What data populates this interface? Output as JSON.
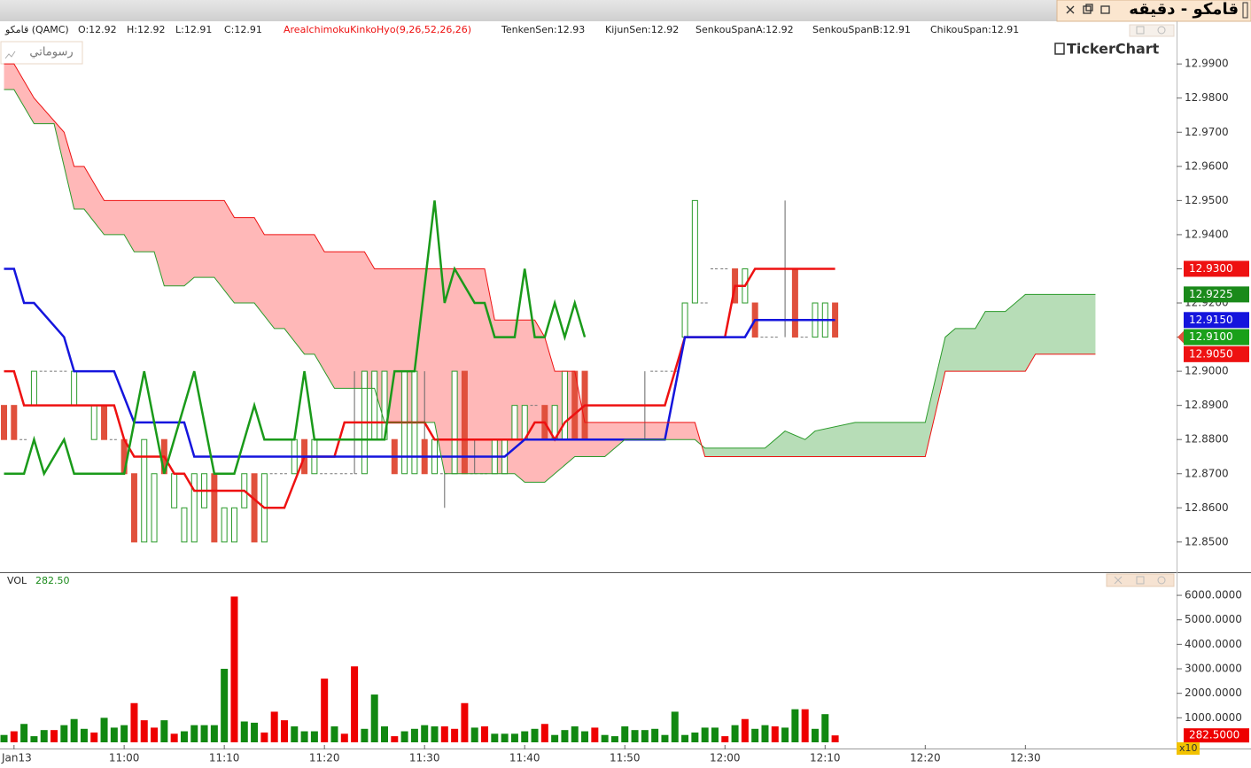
{
  "window_title": "قامكو - دقيقه",
  "drawings_button": "رسوماتي",
  "logo": "TickerChart",
  "chart_data": {
    "type": "candlestick",
    "symbol": "قامكو (QAMC)",
    "ohlc_labels": [
      "O:12.92",
      "H:12.92",
      "L:12.91",
      "C:12.91"
    ],
    "indicator": "AreaIchimokuKinkoHyo(9,26,52,26,26)",
    "up_color": "#2a9a2a",
    "down_color": "#e0503c",
    "x": [
      648,
      649,
      650,
      651,
      652,
      653,
      654,
      655,
      656,
      657,
      658,
      659,
      660,
      661,
      662,
      663,
      664,
      665,
      666,
      667,
      668,
      669,
      670,
      671,
      672,
      673,
      674,
      675,
      676,
      677,
      678,
      679,
      680,
      681,
      682,
      683,
      684,
      685,
      686,
      687,
      688,
      689,
      690,
      691,
      692,
      693,
      694,
      695,
      696,
      697,
      698,
      699,
      700,
      701,
      702,
      703,
      704,
      705,
      706,
      707,
      708,
      709,
      710,
      711,
      712,
      713,
      714,
      715,
      716,
      717,
      718,
      719,
      720,
      721,
      722,
      723,
      724,
      725,
      726,
      727,
      728,
      729,
      730,
      731
    ],
    "ohlc": [
      [
        12.89,
        12.89,
        12.88,
        12.88
      ],
      [
        12.89,
        12.89,
        12.88,
        12.88
      ],
      [
        12.88,
        12.88,
        12.88,
        12.88
      ],
      [
        12.89,
        12.9,
        12.89,
        12.9
      ],
      [
        12.9,
        12.9,
        12.9,
        12.9
      ],
      [
        12.9,
        12.9,
        12.9,
        12.9
      ],
      [
        12.9,
        12.9,
        12.9,
        12.9
      ],
      [
        12.89,
        12.9,
        12.89,
        12.9
      ],
      [
        12.89,
        12.89,
        12.89,
        12.89
      ],
      [
        12.88,
        12.89,
        12.88,
        12.89
      ],
      [
        12.89,
        12.89,
        12.88,
        12.88
      ],
      [
        12.88,
        12.88,
        12.88,
        12.88
      ],
      [
        12.88,
        12.88,
        12.87,
        12.87
      ],
      [
        12.87,
        12.87,
        12.85,
        12.85
      ],
      [
        12.85,
        12.88,
        12.85,
        12.88
      ],
      [
        12.85,
        12.87,
        12.85,
        12.87
      ],
      [
        12.88,
        12.88,
        12.87,
        12.87
      ],
      [
        12.86,
        12.87,
        12.86,
        12.87
      ],
      [
        12.85,
        12.86,
        12.85,
        12.86
      ],
      [
        12.85,
        12.87,
        12.85,
        12.87
      ],
      [
        12.86,
        12.87,
        12.86,
        12.87
      ],
      [
        12.87,
        12.87,
        12.85,
        12.85
      ],
      [
        12.85,
        12.86,
        12.85,
        12.86
      ],
      [
        12.85,
        12.86,
        12.85,
        12.86
      ],
      [
        12.86,
        12.87,
        12.86,
        12.87
      ],
      [
        12.87,
        12.87,
        12.85,
        12.85
      ],
      [
        12.85,
        12.87,
        12.85,
        12.87
      ],
      [
        12.87,
        12.87,
        12.87,
        12.87
      ],
      [
        12.87,
        12.87,
        12.87,
        12.87
      ],
      [
        12.87,
        12.88,
        12.87,
        12.88
      ],
      [
        12.88,
        12.88,
        12.87,
        12.87
      ],
      [
        12.87,
        12.88,
        12.87,
        12.88
      ],
      [
        12.87,
        12.87,
        12.87,
        12.87
      ],
      [
        12.87,
        12.87,
        12.87,
        12.87
      ],
      [
        12.87,
        12.87,
        12.87,
        12.87
      ],
      [
        12.87,
        12.9,
        12.87,
        12.87
      ],
      [
        12.87,
        12.9,
        12.87,
        12.9
      ],
      [
        12.88,
        12.9,
        12.88,
        12.9
      ],
      [
        12.88,
        12.9,
        12.88,
        12.9
      ],
      [
        12.88,
        12.88,
        12.87,
        12.87
      ],
      [
        12.87,
        12.9,
        12.87,
        12.9
      ],
      [
        12.87,
        12.9,
        12.87,
        12.9
      ],
      [
        12.88,
        12.9,
        12.87,
        12.87
      ],
      [
        12.87,
        12.88,
        12.87,
        12.88
      ],
      [
        12.87,
        12.87,
        12.86,
        12.87
      ],
      [
        12.87,
        12.9,
        12.87,
        12.9
      ],
      [
        12.9,
        12.9,
        12.87,
        12.87
      ],
      [
        12.87,
        12.88,
        12.87,
        12.87
      ],
      [
        12.87,
        12.87,
        12.87,
        12.87
      ],
      [
        12.87,
        12.88,
        12.87,
        12.88
      ],
      [
        12.87,
        12.88,
        12.87,
        12.88
      ],
      [
        12.88,
        12.89,
        12.88,
        12.89
      ],
      [
        12.88,
        12.89,
        12.88,
        12.89
      ],
      [
        12.89,
        12.89,
        12.89,
        12.89
      ],
      [
        12.89,
        12.89,
        12.88,
        12.88
      ],
      [
        12.88,
        12.89,
        12.88,
        12.89
      ],
      [
        12.88,
        12.9,
        12.88,
        12.9
      ],
      [
        12.9,
        12.9,
        12.88,
        12.88
      ],
      [
        12.9,
        12.9,
        12.88,
        12.88
      ],
      [
        12.89,
        12.89,
        12.89,
        12.89
      ],
      [
        12.89,
        12.89,
        12.89,
        12.89
      ],
      [
        12.89,
        12.89,
        12.89,
        12.89
      ],
      [
        12.89,
        12.89,
        12.89,
        12.89
      ],
      [
        12.89,
        12.89,
        12.89,
        12.89
      ],
      [
        12.89,
        12.9,
        12.88,
        12.89
      ],
      [
        12.9,
        12.9,
        12.9,
        12.9
      ],
      [
        12.9,
        12.9,
        12.9,
        12.9
      ],
      [
        12.9,
        12.9,
        12.9,
        12.9
      ],
      [
        12.91,
        12.92,
        12.91,
        12.92
      ],
      [
        12.92,
        12.95,
        12.92,
        12.95
      ],
      [
        12.92,
        12.92,
        12.92,
        12.92
      ],
      [
        12.93,
        12.93,
        12.93,
        12.93
      ],
      [
        12.93,
        12.93,
        12.93,
        12.93
      ],
      [
        12.93,
        12.93,
        12.92,
        12.92
      ],
      [
        12.92,
        12.93,
        12.92,
        12.93
      ],
      [
        12.92,
        12.92,
        12.91,
        12.91
      ],
      [
        12.91,
        12.91,
        12.91,
        12.91
      ],
      [
        12.91,
        12.91,
        12.91,
        12.91
      ],
      [
        12.93,
        12.95,
        12.91,
        12.93
      ],
      [
        12.93,
        12.93,
        12.91,
        12.91
      ],
      [
        12.91,
        12.91,
        12.91,
        12.91
      ],
      [
        12.91,
        12.92,
        12.91,
        12.92
      ],
      [
        12.91,
        12.92,
        12.91,
        12.92
      ],
      [
        12.92,
        12.92,
        12.91,
        12.91
      ]
    ],
    "xlim": [
      647.6,
      765.1
    ],
    "xticks": [
      {
        "value": 649,
        "label": "Jan13"
      },
      {
        "value": 660,
        "label": "11:00"
      },
      {
        "value": 670,
        "label": "11:10"
      },
      {
        "value": 680,
        "label": "11:20"
      },
      {
        "value": 690,
        "label": "11:30"
      },
      {
        "value": 700,
        "label": "11:40"
      },
      {
        "value": 710,
        "label": "11:50"
      },
      {
        "value": 720,
        "label": "12:00"
      },
      {
        "value": 730,
        "label": "12:10"
      },
      {
        "value": 740,
        "label": "12:20"
      },
      {
        "value": 750,
        "label": "12:30"
      }
    ],
    "ylim": [
      12.8414,
      13.0025
    ],
    "yticks": [
      {
        "value": 12.85,
        "label": "12.8500"
      },
      {
        "value": 12.86,
        "label": "12.8600"
      },
      {
        "value": 12.87,
        "label": "12.8700"
      },
      {
        "value": 12.88,
        "label": "12.8800"
      },
      {
        "value": 12.89,
        "label": "12.8900"
      },
      {
        "value": 12.9,
        "label": "12.9000"
      },
      {
        "value": 12.91,
        "label": "12.9100"
      },
      {
        "value": 12.92,
        "label": "12.9200"
      },
      {
        "value": 12.93,
        "label": "12.9300"
      },
      {
        "value": 12.94,
        "label": "12.9400"
      },
      {
        "value": 12.95,
        "label": "12.9500"
      },
      {
        "value": 12.96,
        "label": "12.9600"
      },
      {
        "value": 12.97,
        "label": "12.9700"
      },
      {
        "value": 12.98,
        "label": "12.9800"
      },
      {
        "value": 12.99,
        "label": "12.9900"
      }
    ],
    "series": [
      {
        "name": "TenkenSen:12.93",
        "color": "#ee1111",
        "width": 2.5,
        "x": [
          648,
          649,
          650,
          659,
          660,
          661,
          664,
          665,
          666,
          667,
          672,
          674,
          676,
          678,
          681,
          682,
          690,
          691,
          700,
          701,
          702,
          703,
          704,
          706,
          714,
          716,
          720,
          721,
          722,
          723,
          731
        ],
        "values": [
          12.9,
          12.9,
          12.89,
          12.89,
          12.88,
          12.875,
          12.875,
          12.87,
          12.87,
          12.865,
          12.865,
          12.86,
          12.86,
          12.875,
          12.875,
          12.885,
          12.885,
          12.88,
          12.88,
          12.885,
          12.885,
          12.88,
          12.885,
          12.89,
          12.89,
          12.91,
          12.91,
          12.925,
          12.925,
          12.93,
          12.93
        ]
      },
      {
        "name": "KijunSen:12.92",
        "color": "#1515dd",
        "width": 2.5,
        "x": [
          648,
          649,
          650,
          651,
          654,
          655,
          659,
          661,
          666,
          667,
          698,
          700,
          714,
          716,
          722,
          723,
          731
        ],
        "values": [
          12.93,
          12.93,
          12.92,
          12.92,
          12.91,
          12.9,
          12.9,
          12.885,
          12.885,
          12.875,
          12.875,
          12.88,
          12.88,
          12.91,
          12.91,
          12.915,
          12.915
        ]
      },
      {
        "name": "SenkouSpanA:12.92",
        "color": "#2a9a2a",
        "width": 1,
        "x": [
          648,
          649,
          651,
          653,
          655,
          656,
          658,
          660,
          661,
          663,
          664,
          666,
          667,
          669,
          671,
          673,
          675,
          676,
          678,
          679,
          681,
          685,
          686,
          691,
          692,
          699,
          700,
          702,
          703,
          705,
          708,
          710,
          717,
          718,
          724,
          726,
          728,
          729,
          733,
          740,
          742,
          743,
          745,
          746,
          748,
          750,
          757
        ],
        "values": [
          12.9825,
          12.9825,
          12.9725,
          12.9725,
          12.9475,
          12.9475,
          12.94,
          12.94,
          12.935,
          12.935,
          12.925,
          12.925,
          12.9275,
          12.9275,
          12.92,
          12.92,
          12.9125,
          12.9125,
          12.905,
          12.905,
          12.895,
          12.895,
          12.885,
          12.885,
          12.87,
          12.87,
          12.8675,
          12.8675,
          12.87,
          12.875,
          12.875,
          12.88,
          12.88,
          12.8775,
          12.8775,
          12.8825,
          12.88,
          12.8825,
          12.885,
          12.885,
          12.91,
          12.9125,
          12.9125,
          12.9175,
          12.9175,
          12.9225,
          12.9225
        ]
      },
      {
        "name": "SenkouSpanB:12.91",
        "color": "#ee1111",
        "width": 1,
        "x": [
          648,
          649,
          651,
          654,
          655,
          656,
          658,
          670,
          671,
          673,
          674,
          679,
          680,
          684,
          685,
          696,
          697,
          701,
          702,
          703,
          705,
          706,
          717,
          718,
          740,
          742,
          750,
          751,
          757
        ],
        "values": [
          12.99,
          12.99,
          12.98,
          12.97,
          12.96,
          12.96,
          12.95,
          12.95,
          12.945,
          12.945,
          12.94,
          12.94,
          12.935,
          12.935,
          12.93,
          12.93,
          12.915,
          12.915,
          12.91,
          12.9,
          12.9,
          12.885,
          12.885,
          12.875,
          12.875,
          12.9,
          12.9,
          12.905,
          12.905
        ]
      },
      {
        "name": "ChikouSpan:12.91",
        "color": "#1a9a1a",
        "width": 2.5,
        "x": [
          648,
          650,
          651,
          652,
          654,
          655,
          660,
          662,
          664,
          667,
          669,
          671,
          673,
          674,
          677,
          678,
          679,
          686,
          687,
          689,
          691,
          692,
          693,
          695,
          696,
          697,
          699,
          700,
          701,
          702,
          703,
          704,
          705,
          706
        ],
        "values": [
          12.87,
          12.87,
          12.88,
          12.87,
          12.88,
          12.87,
          12.87,
          12.9,
          12.87,
          12.9,
          12.87,
          12.87,
          12.89,
          12.88,
          12.88,
          12.9,
          12.88,
          12.88,
          12.9,
          12.9,
          12.95,
          12.92,
          12.93,
          12.92,
          12.92,
          12.91,
          12.91,
          12.93,
          12.91,
          12.91,
          12.92,
          12.91,
          12.92,
          12.91
        ]
      }
    ],
    "cloud_colors": {
      "bullish": "#b7ddb7",
      "bearish": "#ffb8b8"
    },
    "price_tags": [
      {
        "value": 12.93,
        "label": "12.9300",
        "color": "#ee1111"
      },
      {
        "value": 12.9225,
        "label": "12.9225",
        "color": "#1a8a1a"
      },
      {
        "value": 12.915,
        "label": "12.9150",
        "color": "#1515dd"
      },
      {
        "value": 12.91,
        "label": "12.9100",
        "color": "#e0503c"
      },
      {
        "value": 12.91,
        "label": "12.9100",
        "color": "#1aa01a"
      },
      {
        "value": 12.905,
        "label": "12.9050",
        "color": "#ee1111"
      }
    ],
    "volume": {
      "label": "VOL",
      "value_label": "282.50",
      "values": [
        300,
        450,
        750,
        250,
        500,
        500,
        700,
        950,
        550,
        400,
        1000,
        600,
        700,
        1600,
        900,
        600,
        900,
        350,
        450,
        700,
        700,
        700,
        3000,
        5950,
        850,
        800,
        400,
        1250,
        900,
        650,
        450,
        450,
        2600,
        650,
        350,
        3100,
        550,
        1950,
        650,
        250,
        450,
        550,
        700,
        650,
        650,
        550,
        1600,
        600,
        650,
        350,
        350,
        350,
        450,
        550,
        750,
        300,
        500,
        650,
        450,
        600,
        300,
        250,
        650,
        500,
        500,
        550,
        300,
        1250,
        300,
        400,
        600,
        600,
        250,
        700,
        950,
        550,
        700,
        650,
        600,
        1350,
        1350,
        550,
        1150,
        282.5
      ],
      "colors": [
        "#118811",
        "#ee0000",
        "#118811",
        "#118811",
        "#118811",
        "#ee0000",
        "#118811",
        "#118811",
        "#118811",
        "#ee0000",
        "#118811",
        "#118811",
        "#118811",
        "#ee0000",
        "#ee0000",
        "#ee0000",
        "#118811",
        "#ee0000",
        "#118811",
        "#118811",
        "#118811",
        "#118811",
        "#118811",
        "#ee0000",
        "#118811",
        "#118811",
        "#ee0000",
        "#ee0000",
        "#ee0000",
        "#118811",
        "#118811",
        "#118811",
        "#ee0000",
        "#118811",
        "#ee0000",
        "#ee0000",
        "#118811",
        "#118811",
        "#118811",
        "#ee0000",
        "#118811",
        "#118811",
        "#118811",
        "#118811",
        "#ee0000",
        "#ee0000",
        "#ee0000",
        "#118811",
        "#ee0000",
        "#118811",
        "#118811",
        "#118811",
        "#118811",
        "#118811",
        "#ee0000",
        "#118811",
        "#118811",
        "#118811",
        "#118811",
        "#ee0000",
        "#118811",
        "#118811",
        "#118811",
        "#118811",
        "#118811",
        "#118811",
        "#118811",
        "#118811",
        "#118811",
        "#118811",
        "#118811",
        "#118811",
        "#ee0000",
        "#118811",
        "#ee0000",
        "#118811",
        "#118811",
        "#ee0000",
        "#118811",
        "#118811",
        "#ee0000",
        "#118811",
        "#118811",
        "#ee0000"
      ],
      "ylim": [
        0,
        6870
      ],
      "yticks": [
        {
          "value": 1000,
          "label": "1000.0000"
        },
        {
          "value": 2000,
          "label": "2000.0000"
        },
        {
          "value": 3000,
          "label": "3000.0000"
        },
        {
          "value": 4000,
          "label": "4000.0000"
        },
        {
          "value": 5000,
          "label": "5000.0000"
        },
        {
          "value": 6000,
          "label": "6000.0000"
        }
      ],
      "last_tag": {
        "value": 282.5,
        "label": "282.5000",
        "color": "#ee0000"
      },
      "scale_badge": "x10"
    }
  }
}
